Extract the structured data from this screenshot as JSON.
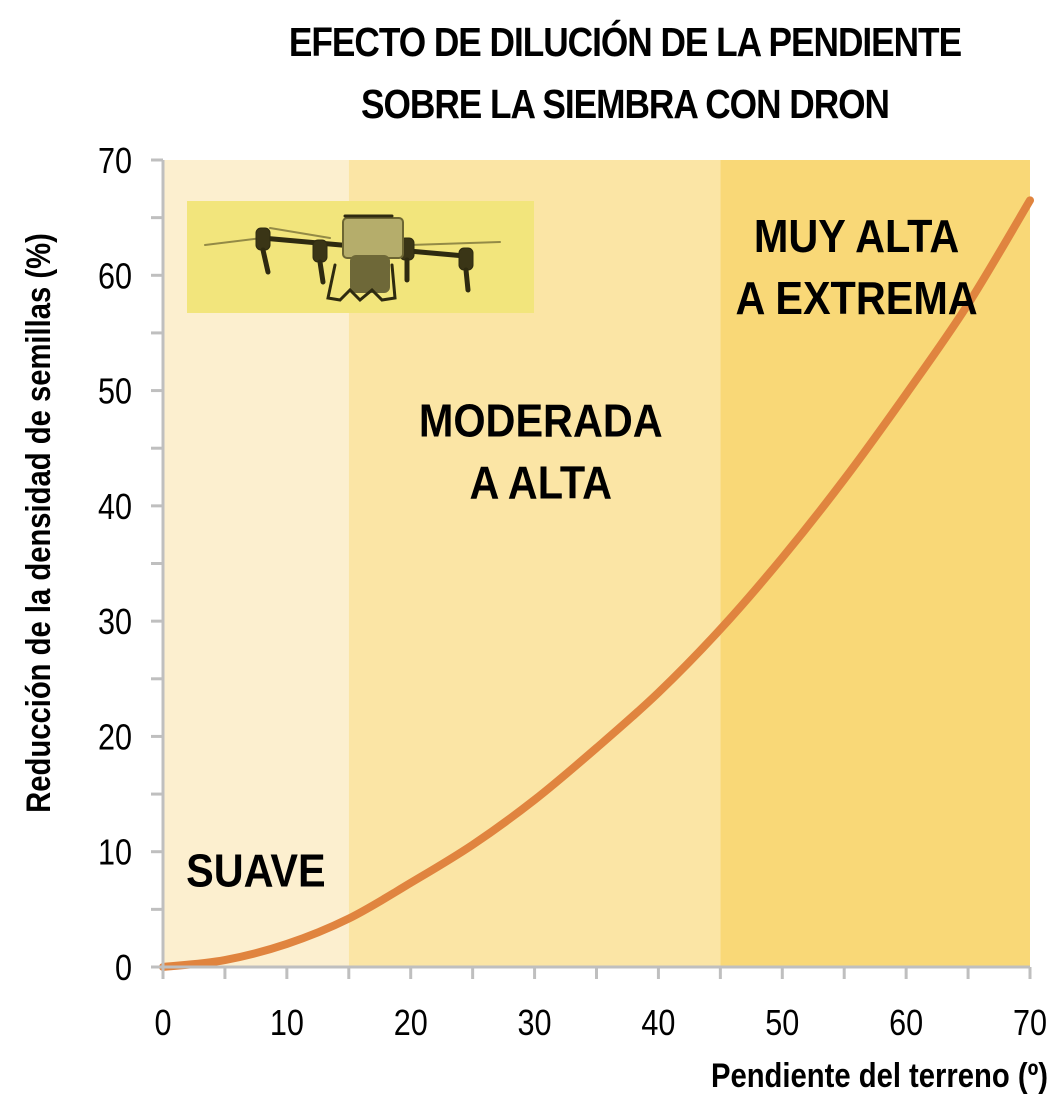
{
  "chart_data": {
    "type": "line",
    "title": "EFECTO DE DILUCIÓN DE LA PENDIENTE SOBRE LA SIEMBRA CON DRON",
    "title_lines": [
      "EFECTO DE DILUCIÓN DE LA PENDIENTE",
      "SOBRE LA SIEMBRA CON DRON"
    ],
    "xlabel": "Pendiente del terreno (º)",
    "ylabel": "Reducción de la densidad de semillas (%)",
    "xlim": [
      0,
      70
    ],
    "ylim": [
      0,
      70
    ],
    "x_ticks": [
      0,
      10,
      20,
      30,
      40,
      50,
      60,
      70
    ],
    "y_ticks": [
      0,
      10,
      20,
      30,
      40,
      50,
      60,
      70
    ],
    "x_tick_labels": [
      "0",
      "10",
      "20",
      "30",
      "40",
      "50",
      "60",
      "70"
    ],
    "y_tick_labels": [
      "0",
      "10",
      "20",
      "30",
      "40",
      "50",
      "60",
      "70"
    ],
    "grid": false,
    "legend": null,
    "series": [
      {
        "name": "Reducción de la densidad de semillas",
        "color": "#e0843f",
        "x": [
          0,
          5,
          10,
          15,
          20,
          25,
          30,
          35,
          40,
          45,
          50,
          55,
          60,
          65,
          70
        ],
        "y": [
          0,
          0.6,
          2.0,
          4.2,
          7.3,
          10.6,
          14.5,
          19.0,
          23.8,
          29.3,
          35.5,
          42.3,
          49.7,
          57.5,
          66.5
        ]
      }
    ],
    "regions": [
      {
        "label": "SUAVE",
        "x_start": 0,
        "x_end": 15,
        "color": "#fcefcf"
      },
      {
        "label": "MODERADA A ALTA",
        "x_start": 15,
        "x_end": 45,
        "color": "#fbe5a5"
      },
      {
        "label": "MUY ALTA A EXTREMA",
        "x_start": 45,
        "x_end": 70,
        "color": "#f9d877"
      }
    ],
    "annotations": [
      {
        "text_lines": [
          "SUAVE"
        ],
        "x": 7.5,
        "y": 7
      },
      {
        "text_lines": [
          "MODERADA",
          "A ALTA"
        ],
        "x": 30.5,
        "y": 46
      },
      {
        "text_lines": [
          "MUY ALTA",
          "A EXTREMA"
        ],
        "x": 56,
        "y": 62
      }
    ],
    "inset_image": {
      "description": "agricultural seeding drone photo",
      "background": "#f2e57c"
    }
  },
  "axis_color": "#bfbfbf"
}
